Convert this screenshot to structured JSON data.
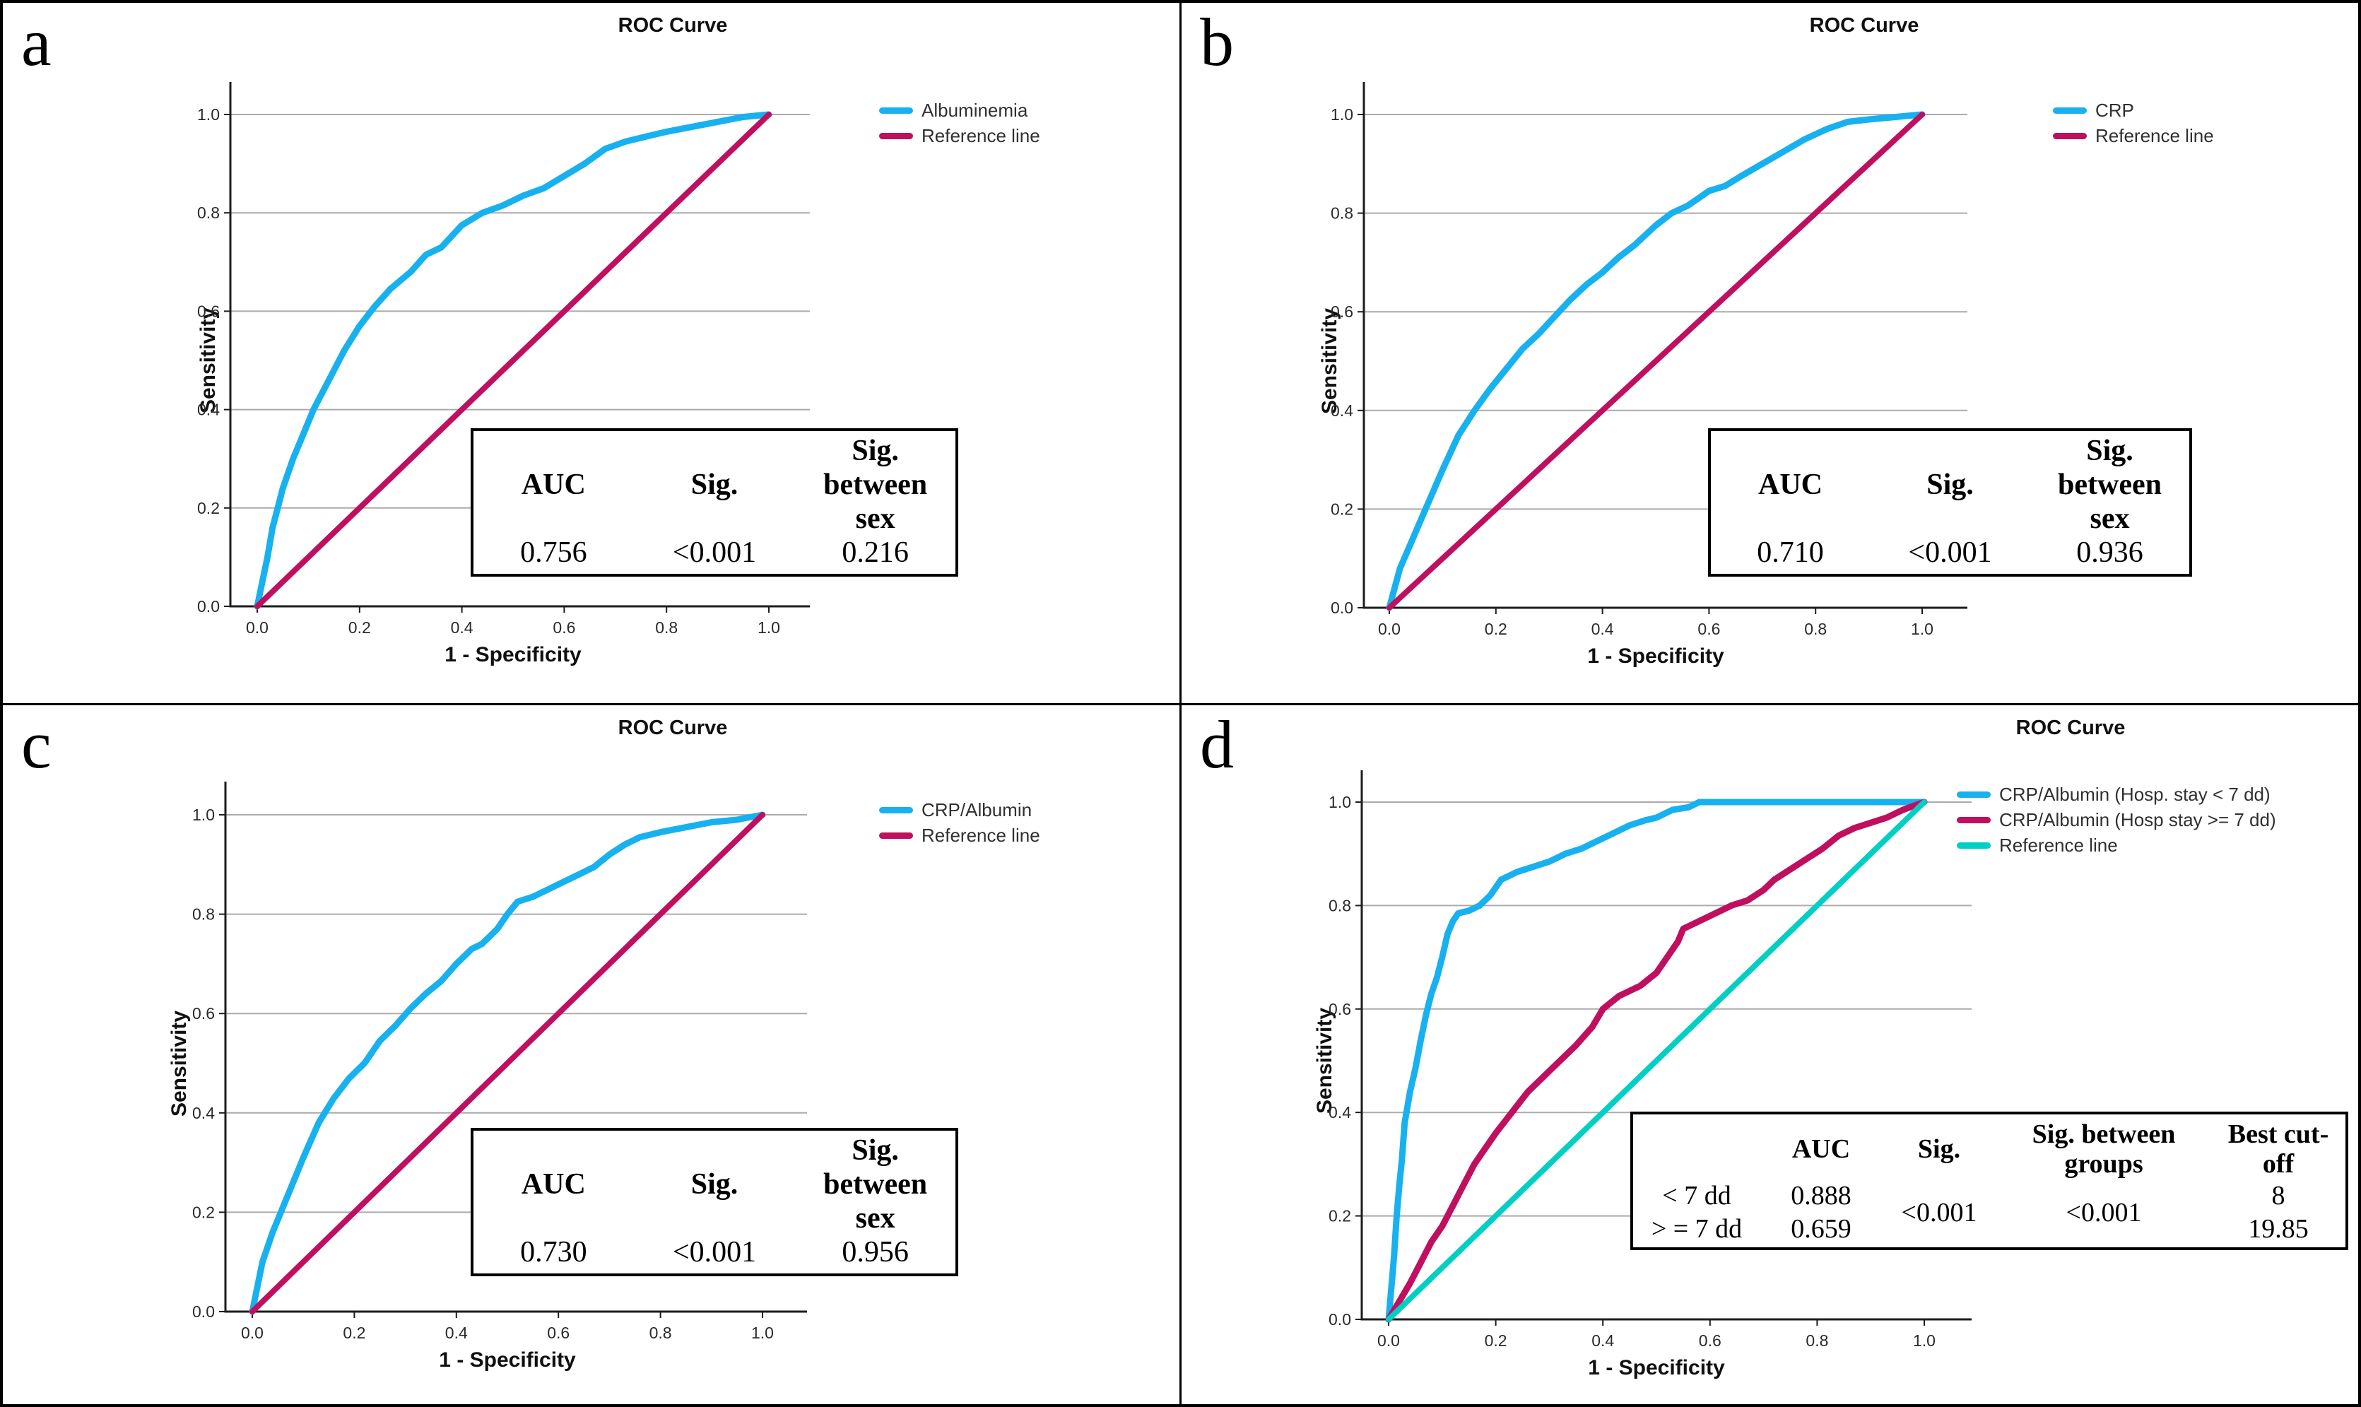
{
  "figure": {
    "background": "#ffffff",
    "border_color": "#000000"
  },
  "colors": {
    "blue": "#18b1f0",
    "crimson": "#c00f5e",
    "teal": "#00cfc4",
    "grid": "#ababab",
    "axis": "#1c1c1c"
  },
  "chart_data": [
    {
      "panel": "a",
      "letter": "a",
      "type": "line",
      "title": "ROC Curve",
      "xlabel": "1 - Specificity",
      "ylabel": "Sensitivity",
      "xlim": [
        0,
        1
      ],
      "ylim": [
        0,
        1
      ],
      "xticks": [
        "0.0",
        "0.2",
        "0.4",
        "0.6",
        "0.8",
        "1.0"
      ],
      "yticks": [
        "0.0",
        "0.2",
        "0.4",
        "0.6",
        "0.8",
        "1.0"
      ],
      "grid": "horizontal",
      "legend_position": "right",
      "legend": [
        {
          "label": "Albuminemia",
          "color": "#18b1f0"
        },
        {
          "label": "Reference line",
          "color": "#c00f5e"
        }
      ],
      "series": [
        {
          "name": "Albuminemia",
          "color": "#18b1f0",
          "width": 9,
          "points": [
            [
              0,
              0
            ],
            [
              0.01,
              0.05
            ],
            [
              0.02,
              0.1
            ],
            [
              0.03,
              0.16
            ],
            [
              0.04,
              0.2
            ],
            [
              0.05,
              0.24
            ],
            [
              0.07,
              0.3
            ],
            [
              0.09,
              0.35
            ],
            [
              0.11,
              0.4
            ],
            [
              0.13,
              0.44
            ],
            [
              0.15,
              0.48
            ],
            [
              0.17,
              0.52
            ],
            [
              0.2,
              0.57
            ],
            [
              0.23,
              0.61
            ],
            [
              0.26,
              0.645
            ],
            [
              0.3,
              0.68
            ],
            [
              0.33,
              0.715
            ],
            [
              0.36,
              0.73
            ],
            [
              0.4,
              0.775
            ],
            [
              0.44,
              0.8
            ],
            [
              0.48,
              0.815
            ],
            [
              0.52,
              0.835
            ],
            [
              0.56,
              0.85
            ],
            [
              0.6,
              0.875
            ],
            [
              0.64,
              0.9
            ],
            [
              0.68,
              0.93
            ],
            [
              0.72,
              0.945
            ],
            [
              0.76,
              0.955
            ],
            [
              0.8,
              0.965
            ],
            [
              0.85,
              0.975
            ],
            [
              0.9,
              0.985
            ],
            [
              0.95,
              0.995
            ],
            [
              1,
              1
            ]
          ]
        },
        {
          "name": "Reference line",
          "color": "#c00f5e",
          "width": 8,
          "points": [
            [
              0,
              0
            ],
            [
              1,
              1
            ]
          ]
        }
      ],
      "table": {
        "headers": [
          "AUC",
          "Sig.",
          "Sig. between sex"
        ],
        "rows": [
          [
            "0.756",
            "<0.001",
            "0.216"
          ]
        ]
      }
    },
    {
      "panel": "b",
      "letter": "b",
      "type": "line",
      "title": "ROC Curve",
      "xlabel": "1 - Specificity",
      "ylabel": "Sensitivity",
      "xlim": [
        0,
        1
      ],
      "ylim": [
        0,
        1
      ],
      "xticks": [
        "0.0",
        "0.2",
        "0.4",
        "0.6",
        "0.8",
        "1.0"
      ],
      "yticks": [
        "0.0",
        "0.2",
        "0.4",
        "0.6",
        "0.8",
        "1.0"
      ],
      "grid": "horizontal",
      "legend_position": "right",
      "legend": [
        {
          "label": "CRP",
          "color": "#18b1f0"
        },
        {
          "label": "Reference line",
          "color": "#c00f5e"
        }
      ],
      "series": [
        {
          "name": "CRP",
          "color": "#18b1f0",
          "width": 9,
          "points": [
            [
              0,
              0
            ],
            [
              0.01,
              0.04
            ],
            [
              0.02,
              0.08
            ],
            [
              0.04,
              0.13
            ],
            [
              0.06,
              0.18
            ],
            [
              0.08,
              0.23
            ],
            [
              0.1,
              0.28
            ],
            [
              0.13,
              0.35
            ],
            [
              0.16,
              0.4
            ],
            [
              0.19,
              0.445
            ],
            [
              0.22,
              0.485
            ],
            [
              0.25,
              0.525
            ],
            [
              0.28,
              0.555
            ],
            [
              0.31,
              0.59
            ],
            [
              0.34,
              0.625
            ],
            [
              0.37,
              0.655
            ],
            [
              0.4,
              0.68
            ],
            [
              0.43,
              0.71
            ],
            [
              0.46,
              0.735
            ],
            [
              0.5,
              0.775
            ],
            [
              0.53,
              0.8
            ],
            [
              0.56,
              0.815
            ],
            [
              0.58,
              0.83
            ],
            [
              0.6,
              0.845
            ],
            [
              0.63,
              0.855
            ],
            [
              0.66,
              0.875
            ],
            [
              0.7,
              0.9
            ],
            [
              0.74,
              0.925
            ],
            [
              0.78,
              0.95
            ],
            [
              0.82,
              0.97
            ],
            [
              0.86,
              0.985
            ],
            [
              0.9,
              0.99
            ],
            [
              0.95,
              0.995
            ],
            [
              1,
              1
            ]
          ]
        },
        {
          "name": "Reference line",
          "color": "#c00f5e",
          "width": 8,
          "points": [
            [
              0,
              0
            ],
            [
              1,
              1
            ]
          ]
        }
      ],
      "table": {
        "headers": [
          "AUC",
          "Sig.",
          "Sig. between sex"
        ],
        "rows": [
          [
            "0.710",
            "<0.001",
            "0.936"
          ]
        ]
      }
    },
    {
      "panel": "c",
      "letter": "c",
      "type": "line",
      "title": "ROC Curve",
      "xlabel": "1 - Specificity",
      "ylabel": "Sensitivity",
      "xlim": [
        0,
        1
      ],
      "ylim": [
        0,
        1
      ],
      "xticks": [
        "0.0",
        "0.2",
        "0.4",
        "0.6",
        "0.8",
        "1.0"
      ],
      "yticks": [
        "0.0",
        "0.2",
        "0.4",
        "0.6",
        "0.8",
        "1.0"
      ],
      "grid": "horizontal",
      "legend_position": "right",
      "legend": [
        {
          "label": "CRP/Albumin",
          "color": "#18b1f0"
        },
        {
          "label": "Reference line",
          "color": "#c00f5e"
        }
      ],
      "series": [
        {
          "name": "CRP/Albumin",
          "color": "#18b1f0",
          "width": 9,
          "points": [
            [
              0,
              0
            ],
            [
              0.01,
              0.05
            ],
            [
              0.02,
              0.1
            ],
            [
              0.04,
              0.16
            ],
            [
              0.06,
              0.21
            ],
            [
              0.08,
              0.26
            ],
            [
              0.1,
              0.31
            ],
            [
              0.13,
              0.38
            ],
            [
              0.16,
              0.43
            ],
            [
              0.19,
              0.47
            ],
            [
              0.22,
              0.5
            ],
            [
              0.25,
              0.545
            ],
            [
              0.28,
              0.575
            ],
            [
              0.31,
              0.61
            ],
            [
              0.34,
              0.64
            ],
            [
              0.37,
              0.665
            ],
            [
              0.4,
              0.7
            ],
            [
              0.43,
              0.73
            ],
            [
              0.45,
              0.74
            ],
            [
              0.48,
              0.77
            ],
            [
              0.5,
              0.8
            ],
            [
              0.52,
              0.825
            ],
            [
              0.55,
              0.835
            ],
            [
              0.58,
              0.85
            ],
            [
              0.61,
              0.865
            ],
            [
              0.64,
              0.88
            ],
            [
              0.67,
              0.895
            ],
            [
              0.7,
              0.92
            ],
            [
              0.73,
              0.94
            ],
            [
              0.76,
              0.955
            ],
            [
              0.8,
              0.965
            ],
            [
              0.85,
              0.975
            ],
            [
              0.9,
              0.985
            ],
            [
              0.95,
              0.99
            ],
            [
              1,
              1
            ]
          ]
        },
        {
          "name": "Reference line",
          "color": "#c00f5e",
          "width": 8,
          "points": [
            [
              0,
              0
            ],
            [
              1,
              1
            ]
          ]
        }
      ],
      "table": {
        "headers": [
          "AUC",
          "Sig.",
          "Sig. between sex"
        ],
        "rows": [
          [
            "0.730",
            "<0.001",
            "0.956"
          ]
        ]
      }
    },
    {
      "panel": "d",
      "letter": "d",
      "type": "line",
      "title": "ROC Curve",
      "xlabel": "1 - Specificity",
      "ylabel": "Sensitivity",
      "xlim": [
        0,
        1
      ],
      "ylim": [
        0,
        1
      ],
      "xticks": [
        "0.0",
        "0.2",
        "0.4",
        "0.6",
        "0.8",
        "1.0"
      ],
      "yticks": [
        "0.0",
        "0.2",
        "0.4",
        "0.6",
        "0.8",
        "1.0"
      ],
      "grid": "horizontal",
      "legend_position": "right",
      "legend": [
        {
          "label": "CRP/Albumin (Hosp. stay < 7 dd)",
          "color": "#18b1f0"
        },
        {
          "label": "CRP/Albumin (Hosp stay >= 7 dd)",
          "color": "#c00f5e"
        },
        {
          "label": "Reference line",
          "color": "#00cfc4"
        }
      ],
      "series": [
        {
          "name": "CRP/Albumin (Hosp. stay < 7 dd)",
          "color": "#18b1f0",
          "width": 9,
          "points": [
            [
              0,
              0
            ],
            [
              0.005,
              0.06
            ],
            [
              0.01,
              0.12
            ],
            [
              0.015,
              0.2
            ],
            [
              0.02,
              0.26
            ],
            [
              0.025,
              0.31
            ],
            [
              0.03,
              0.38
            ],
            [
              0.04,
              0.44
            ],
            [
              0.05,
              0.485
            ],
            [
              0.06,
              0.54
            ],
            [
              0.07,
              0.59
            ],
            [
              0.08,
              0.63
            ],
            [
              0.09,
              0.66
            ],
            [
              0.1,
              0.7
            ],
            [
              0.11,
              0.745
            ],
            [
              0.12,
              0.77
            ],
            [
              0.13,
              0.785
            ],
            [
              0.15,
              0.79
            ],
            [
              0.17,
              0.8
            ],
            [
              0.19,
              0.82
            ],
            [
              0.21,
              0.85
            ],
            [
              0.24,
              0.865
            ],
            [
              0.27,
              0.875
            ],
            [
              0.3,
              0.885
            ],
            [
              0.33,
              0.9
            ],
            [
              0.36,
              0.91
            ],
            [
              0.39,
              0.925
            ],
            [
              0.42,
              0.94
            ],
            [
              0.45,
              0.955
            ],
            [
              0.48,
              0.965
            ],
            [
              0.5,
              0.97
            ],
            [
              0.53,
              0.985
            ],
            [
              0.56,
              0.99
            ],
            [
              0.58,
              1.0
            ],
            [
              1,
              1
            ]
          ]
        },
        {
          "name": "CRP/Albumin (Hosp stay >= 7 dd)",
          "color": "#c00f5e",
          "width": 9,
          "points": [
            [
              0,
              0
            ],
            [
              0.02,
              0.035
            ],
            [
              0.04,
              0.07
            ],
            [
              0.06,
              0.11
            ],
            [
              0.08,
              0.15
            ],
            [
              0.1,
              0.18
            ],
            [
              0.12,
              0.22
            ],
            [
              0.14,
              0.26
            ],
            [
              0.16,
              0.3
            ],
            [
              0.18,
              0.33
            ],
            [
              0.2,
              0.36
            ],
            [
              0.23,
              0.4
            ],
            [
              0.26,
              0.44
            ],
            [
              0.29,
              0.47
            ],
            [
              0.32,
              0.5
            ],
            [
              0.35,
              0.53
            ],
            [
              0.38,
              0.565
            ],
            [
              0.4,
              0.6
            ],
            [
              0.43,
              0.625
            ],
            [
              0.45,
              0.635
            ],
            [
              0.47,
              0.645
            ],
            [
              0.5,
              0.67
            ],
            [
              0.52,
              0.7
            ],
            [
              0.54,
              0.73
            ],
            [
              0.55,
              0.755
            ],
            [
              0.58,
              0.77
            ],
            [
              0.61,
              0.785
            ],
            [
              0.64,
              0.8
            ],
            [
              0.67,
              0.81
            ],
            [
              0.7,
              0.83
            ],
            [
              0.72,
              0.85
            ],
            [
              0.75,
              0.87
            ],
            [
              0.78,
              0.89
            ],
            [
              0.81,
              0.91
            ],
            [
              0.84,
              0.935
            ],
            [
              0.87,
              0.95
            ],
            [
              0.9,
              0.96
            ],
            [
              0.93,
              0.97
            ],
            [
              0.96,
              0.985
            ],
            [
              1,
              1
            ]
          ]
        },
        {
          "name": "Reference line",
          "color": "#00cfc4",
          "width": 8,
          "points": [
            [
              0,
              0
            ],
            [
              1,
              1
            ]
          ]
        }
      ],
      "table": {
        "headers": [
          "",
          "AUC",
          "Sig.",
          "Sig. between groups",
          "Best cut-off"
        ],
        "rows": [
          [
            "< 7 dd",
            "0.888",
            "<0.001",
            "<0.001",
            "8"
          ],
          [
            "> = 7 dd",
            "0.659",
            "",
            "",
            "19.85"
          ]
        ],
        "merged_columns": [
          2,
          3
        ]
      }
    }
  ]
}
